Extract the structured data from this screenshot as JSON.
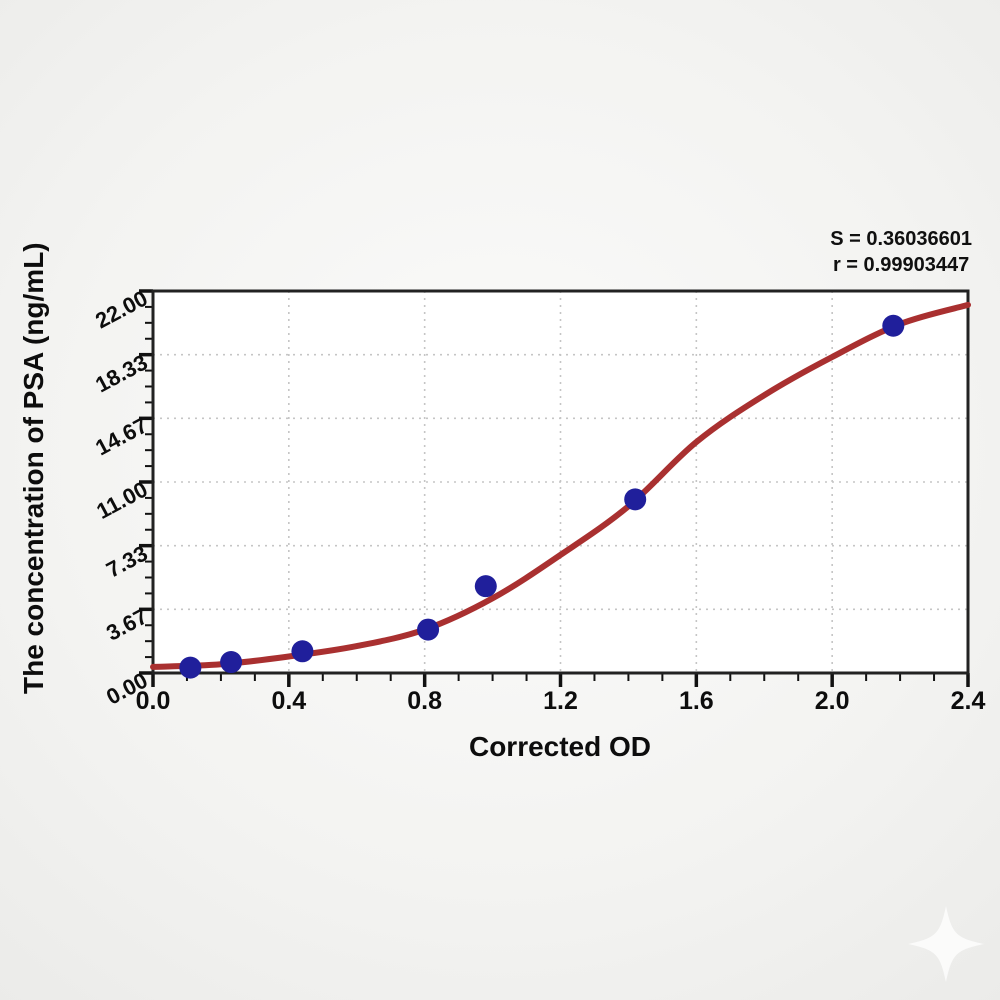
{
  "chart_data": {
    "type": "scatter",
    "title": "",
    "xlabel": "Corrected OD",
    "ylabel": "The concentration of PSA (ng/mL)",
    "xlim": [
      0,
      2.4
    ],
    "ylim": [
      0,
      22
    ],
    "grid": true,
    "legend": "none",
    "x_ticks": [
      0,
      0.4,
      0.8,
      1.2,
      1.6,
      2.0,
      2.4
    ],
    "x_tick_labels": [
      "0.0",
      "0.4",
      "0.8",
      "1.2",
      "1.6",
      "2.0",
      "2.4"
    ],
    "x_minor_step": 0.1,
    "y_ticks": [
      0,
      3.667,
      7.333,
      11,
      14.667,
      18.333,
      22
    ],
    "y_tick_labels": [
      "0.00",
      "3.67",
      "7.33",
      "11.00",
      "14.67",
      "18.33",
      "22.00"
    ],
    "y_minor_divisions": 4,
    "annotation": {
      "s_label": "S = 0.36036601",
      "r_label": "r = 0.99903447"
    },
    "series": [
      {
        "name": "standard-points",
        "type": "scatter",
        "points": [
          {
            "od": 0.11,
            "conc": 0.31
          },
          {
            "od": 0.23,
            "conc": 0.63
          },
          {
            "od": 0.44,
            "conc": 1.25
          },
          {
            "od": 0.81,
            "conc": 2.5
          },
          {
            "od": 0.98,
            "conc": 5.0
          },
          {
            "od": 1.42,
            "conc": 10.0
          },
          {
            "od": 2.18,
            "conc": 20.0
          }
        ]
      },
      {
        "name": "sigmoid-fit-curve",
        "type": "line",
        "points": [
          [
            0.0,
            0.35
          ],
          [
            0.2,
            0.5
          ],
          [
            0.4,
            0.95
          ],
          [
            0.6,
            1.55
          ],
          [
            0.8,
            2.5
          ],
          [
            1.0,
            4.3
          ],
          [
            1.2,
            6.8
          ],
          [
            1.4,
            9.6
          ],
          [
            1.6,
            13.3
          ],
          [
            1.8,
            16.0
          ],
          [
            2.0,
            18.2
          ],
          [
            2.2,
            20.1
          ],
          [
            2.4,
            21.2
          ]
        ]
      }
    ],
    "colors": {
      "curve": "#a93030",
      "point": "#201f9b",
      "grid": "#c5c5c5",
      "frame": "#222222",
      "tick": "#111111",
      "text": "#0d0d0d",
      "plot_bg": "#ffffff",
      "page_bg": "#f1f1f0",
      "watermark": "#fafaf8"
    }
  }
}
